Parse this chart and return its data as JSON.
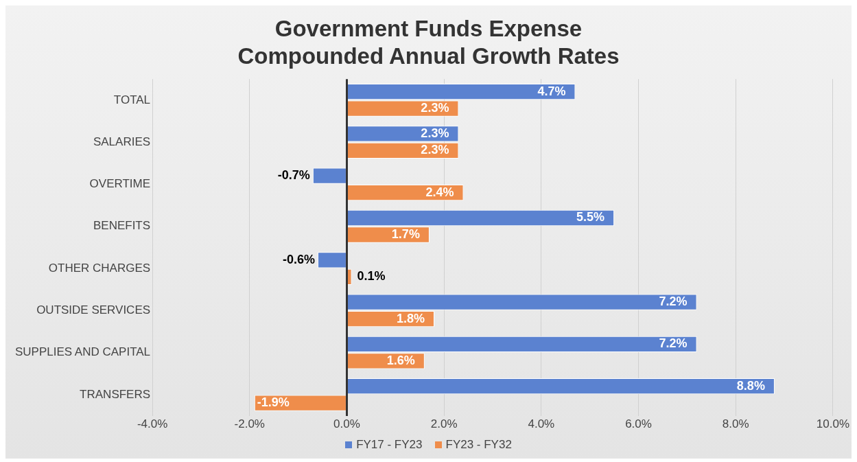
{
  "chart_data": {
    "type": "bar",
    "orientation": "horizontal",
    "title": "Government Funds Expense\nCompounded Annual Growth Rates",
    "categories": [
      "TOTAL",
      "SALARIES",
      "OVERTIME",
      "BENEFITS",
      "OTHER CHARGES",
      "OUTSIDE SERVICES",
      "SUPPLIES AND CAPITAL",
      "TRANSFERS"
    ],
    "series": [
      {
        "name": "FY17 - FY23",
        "color": "#5b82d0",
        "values": [
          4.7,
          2.3,
          -0.7,
          5.5,
          -0.6,
          7.2,
          7.2,
          8.8
        ],
        "value_labels": [
          "4.7%",
          "2.3%",
          "-0.7%",
          "5.5%",
          "-0.6%",
          "7.2%",
          "7.2%",
          "8.8%"
        ]
      },
      {
        "name": "FY23 - FY32",
        "color": "#ef8d4b",
        "values": [
          2.3,
          2.3,
          2.4,
          1.7,
          0.1,
          1.8,
          1.6,
          -1.9
        ],
        "value_labels": [
          "2.3%",
          "2.3%",
          "2.4%",
          "1.7%",
          "0.1%",
          "1.8%",
          "1.6%",
          "-1.9%"
        ]
      }
    ],
    "xlim": [
      -4,
      10
    ],
    "xticks": [
      {
        "value": -4,
        "label": "-4.0%"
      },
      {
        "value": -2,
        "label": "-2.0%"
      },
      {
        "value": 0,
        "label": "0.0%"
      },
      {
        "value": 2,
        "label": "2.0%"
      },
      {
        "value": 4,
        "label": "4.0%"
      },
      {
        "value": 6,
        "label": "6.0%"
      },
      {
        "value": 8,
        "label": "8.0%"
      },
      {
        "value": 10,
        "label": "10.0%"
      }
    ],
    "grid": "x",
    "legend": "bottom"
  }
}
